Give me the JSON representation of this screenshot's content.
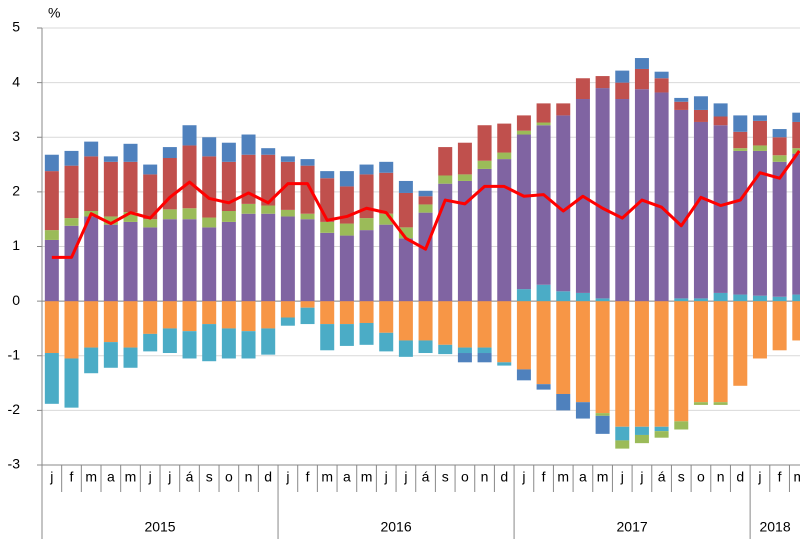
{
  "chart_data": {
    "type": "stacked-bar-line",
    "unit_label": "%",
    "categories": [
      "j",
      "f",
      "m",
      "a",
      "m",
      "j",
      "j",
      "á",
      "s",
      "o",
      "n",
      "d",
      "j",
      "f",
      "m",
      "a",
      "m",
      "j",
      "j",
      "á",
      "s",
      "o",
      "n",
      "d",
      "j",
      "f",
      "m",
      "a",
      "m",
      "j",
      "j",
      "á",
      "s",
      "o",
      "n",
      "d",
      "j",
      "f",
      "m"
    ],
    "group_labels": [
      "2015",
      "2016",
      "2017",
      "2018"
    ],
    "ylim": [
      -3,
      5
    ],
    "yticks": [
      -3,
      -2,
      -1,
      0,
      1,
      2,
      3,
      4,
      5
    ],
    "grid": true,
    "series": [
      {
        "color": "#f79646",
        "values": [
          -0.95,
          -1.05,
          -0.85,
          -0.75,
          -0.85,
          -0.6,
          -0.5,
          -0.55,
          -0.42,
          -0.5,
          -0.55,
          -0.5,
          -0.3,
          -0.12,
          -0.42,
          -0.42,
          -0.4,
          -0.58,
          -0.72,
          -0.72,
          -0.8,
          -0.85,
          -0.85,
          -1.12,
          -1.25,
          -1.52,
          -1.7,
          -1.85,
          -2.05,
          -2.3,
          -2.3,
          -2.3,
          -2.2,
          -1.85,
          -1.85,
          -1.55,
          -1.05,
          -0.9,
          -0.72
        ]
      },
      {
        "color": "#4bacc6",
        "values": [
          -0.93,
          -0.9,
          -0.47,
          -0.47,
          -0.37,
          -0.32,
          -0.45,
          -0.5,
          -0.68,
          -0.55,
          -0.5,
          -0.48,
          -0.15,
          -0.3,
          -0.48,
          -0.4,
          -0.4,
          -0.34,
          -0.3,
          -0.23,
          -0.17,
          -0.1,
          -0.1,
          -0.06,
          0.22,
          0.3,
          0.18,
          0.15,
          0.05,
          -0.25,
          -0.15,
          -0.08,
          0.05,
          0.05,
          0.15,
          0.12,
          0.1,
          0.08,
          0.12
        ]
      },
      {
        "color": "#8064a2",
        "values": [
          1.12,
          1.38,
          1.55,
          1.4,
          1.45,
          1.35,
          1.5,
          1.5,
          1.35,
          1.45,
          1.6,
          1.6,
          1.55,
          1.5,
          1.25,
          1.2,
          1.3,
          1.4,
          1.15,
          1.62,
          2.15,
          2.2,
          2.42,
          2.6,
          2.83,
          2.92,
          3.22,
          3.55,
          3.85,
          3.7,
          3.88,
          3.82,
          3.45,
          3.23,
          3.07,
          2.63,
          2.65,
          2.47,
          2.58
        ]
      },
      {
        "color": "#9bbb59",
        "values": [
          0.18,
          0.14,
          0.1,
          0.15,
          0.18,
          0.15,
          0.18,
          0.2,
          0.18,
          0.2,
          0.18,
          0.15,
          0.12,
          0.1,
          0.2,
          0.22,
          0.22,
          0.2,
          0.2,
          0.15,
          0.15,
          0.12,
          0.15,
          0.12,
          0.07,
          0.05,
          null,
          null,
          -0.05,
          -0.15,
          -0.15,
          -0.12,
          -0.15,
          -0.05,
          -0.05,
          0.05,
          0.1,
          0.12,
          0.1
        ]
      },
      {
        "color": "#c0504d",
        "values": [
          1.08,
          0.96,
          1.0,
          1.0,
          0.92,
          0.82,
          0.94,
          1.15,
          1.12,
          0.9,
          0.9,
          0.93,
          0.88,
          0.88,
          0.8,
          0.68,
          0.8,
          0.75,
          0.63,
          0.15,
          0.52,
          0.58,
          0.65,
          0.53,
          0.28,
          0.35,
          0.22,
          0.38,
          0.22,
          0.3,
          0.37,
          0.26,
          0.15,
          0.22,
          0.16,
          0.3,
          0.45,
          0.33,
          0.48
        ]
      },
      {
        "color": "#4f81bd",
        "values": [
          0.3,
          0.27,
          0.27,
          0.1,
          0.33,
          0.18,
          0.2,
          0.37,
          0.35,
          0.35,
          0.37,
          0.12,
          0.1,
          0.12,
          0.13,
          0.28,
          0.18,
          0.2,
          0.22,
          0.1,
          null,
          -0.17,
          -0.17,
          null,
          -0.2,
          -0.1,
          -0.3,
          -0.3,
          -0.33,
          0.22,
          0.2,
          0.12,
          0.07,
          0.25,
          0.24,
          0.3,
          0.1,
          0.15,
          0.17
        ]
      }
    ],
    "line": {
      "color": "#ff0000",
      "values": [
        0.8,
        0.8,
        1.6,
        1.42,
        1.62,
        1.52,
        1.9,
        2.18,
        1.88,
        1.8,
        1.98,
        1.8,
        2.15,
        2.15,
        1.48,
        1.55,
        1.7,
        1.62,
        1.15,
        0.95,
        1.85,
        1.78,
        2.1,
        2.1,
        1.92,
        1.95,
        1.65,
        1.92,
        1.7,
        1.52,
        1.85,
        1.72,
        1.38,
        1.9,
        1.75,
        1.85,
        2.35,
        2.25,
        2.75
      ]
    }
  }
}
